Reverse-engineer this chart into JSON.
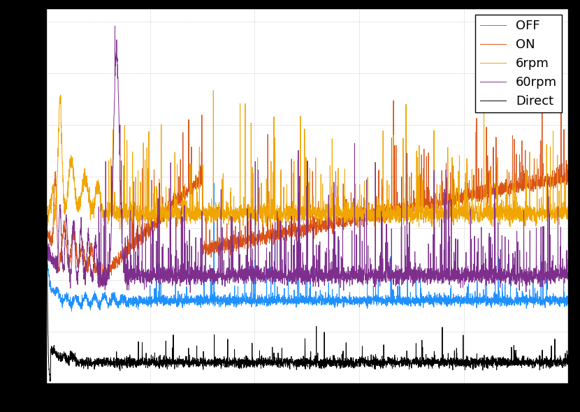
{
  "legend_labels": [
    "OFF",
    "ON",
    "6rpm",
    "60rpm",
    "Direct"
  ],
  "colors": {
    "OFF": "#1e90ff",
    "ON": "#d95319",
    "6rpm": "#f0a500",
    "60rpm": "#7e2f8e",
    "Direct": "#000000"
  },
  "grid_color": "#bbbbbb",
  "background_color": "#ffffff",
  "fig_facecolor": "#000000",
  "legend_fontsize": 13,
  "tick_fontsize": 11,
  "xlim": [
    1,
    500
  ],
  "linewidth": 0.7
}
